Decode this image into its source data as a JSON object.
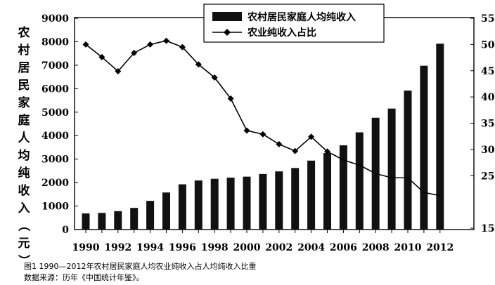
{
  "chart_data": {
    "type": "bar+line",
    "categories": [
      "1990",
      "1991",
      "1992",
      "1993",
      "1994",
      "1995",
      "1996",
      "1997",
      "1998",
      "1999",
      "2000",
      "2001",
      "2002",
      "2003",
      "2004",
      "2005",
      "2006",
      "2007",
      "2008",
      "2009",
      "2010",
      "2011",
      "2012"
    ],
    "x_tick_labels": [
      "1990",
      "1992",
      "1994",
      "1996",
      "1998",
      "2000",
      "2002",
      "2004",
      "2006",
      "2008",
      "2010",
      "2012"
    ],
    "series": [
      {
        "name": "农村居民家庭人均纯收入",
        "kind": "bar",
        "axis": "left",
        "values": [
          686,
          709,
          784,
          922,
          1221,
          1578,
          1926,
          2090,
          2162,
          2210,
          2253,
          2366,
          2476,
          2622,
          2936,
          3255,
          3587,
          4140,
          4761,
          5153,
          5919,
          6977,
          7917
        ]
      },
      {
        "name": "农业纯收入占比",
        "kind": "line",
        "axis": "right",
        "values": [
          50.0,
          47.6,
          44.9,
          48.4,
          50.0,
          50.7,
          49.5,
          46.2,
          43.7,
          39.7,
          33.6,
          32.9,
          31.0,
          29.7,
          32.4,
          29.6,
          28.0,
          27.0,
          25.4,
          24.6,
          24.6,
          21.8,
          21.2
        ]
      }
    ],
    "ylabel": "农村居民家庭人均纯收入（元）",
    "ylim": [
      0,
      9000
    ],
    "y_ticks": [
      0,
      1000,
      2000,
      3000,
      4000,
      5000,
      6000,
      7000,
      8000,
      9000
    ],
    "y2lim": [
      15,
      55
    ],
    "y2_ticks": [
      15,
      25,
      30,
      35,
      40,
      45,
      50,
      55
    ],
    "legend_position": "top-center",
    "grid": false
  },
  "caption": {
    "line1": "图1 1990—2012年农村居民家庭人均农业纯收入占人均纯收入比重",
    "line2": "数据来源：历年《中国统计年鉴》。"
  }
}
